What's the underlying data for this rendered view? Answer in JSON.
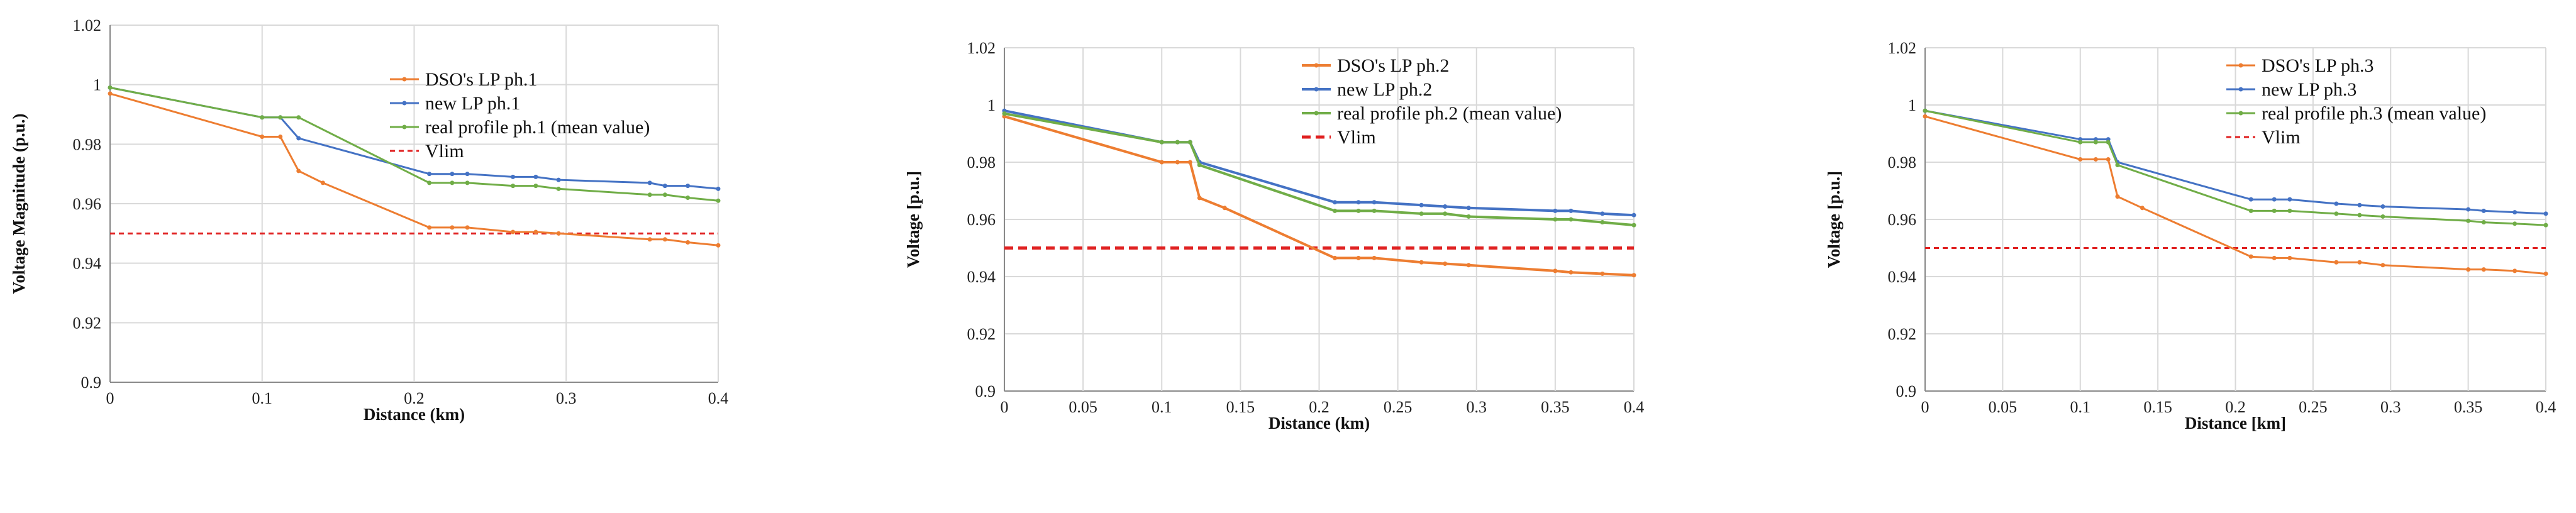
{
  "colors": {
    "dso": "#ED7D31",
    "new": "#4472C4",
    "real": "#70AD47",
    "vlim": "#E02020"
  },
  "chart_data": [
    {
      "type": "line",
      "ylabel": "Voltage Magnitude (p.u.)",
      "xlabel": "Distance (km)",
      "ylim": [
        0.9,
        1.02
      ],
      "yticks": [
        "0.9",
        "0.92",
        "0.94",
        "0.96",
        "0.98",
        "1",
        "1.02"
      ],
      "xlim": [
        0,
        0.4
      ],
      "xticks": [
        "0",
        "0.1",
        "0.2",
        "0.3",
        "0.4"
      ],
      "series": [
        {
          "name": "DSO's LP ph.1",
          "color": "dso",
          "x": [
            0,
            0.1,
            0.112,
            0.124,
            0.14,
            0.21,
            0.225,
            0.235,
            0.265,
            0.28,
            0.295,
            0.355,
            0.365,
            0.38,
            0.4
          ],
          "y": [
            0.997,
            0.9825,
            0.9825,
            0.971,
            0.967,
            0.952,
            0.952,
            0.952,
            0.9505,
            0.9505,
            0.95,
            0.948,
            0.948,
            0.947,
            0.946
          ]
        },
        {
          "name": "new LP ph.1",
          "color": "new",
          "x": [
            0,
            0.1,
            0.112,
            0.124,
            0.21,
            0.225,
            0.235,
            0.265,
            0.28,
            0.295,
            0.355,
            0.365,
            0.38,
            0.4
          ],
          "y": [
            0.999,
            0.989,
            0.989,
            0.982,
            0.97,
            0.97,
            0.97,
            0.969,
            0.969,
            0.968,
            0.967,
            0.966,
            0.966,
            0.965
          ]
        },
        {
          "name": "real profile ph.1 (mean value)",
          "color": "real",
          "x": [
            0,
            0.1,
            0.112,
            0.124,
            0.21,
            0.225,
            0.235,
            0.265,
            0.28,
            0.295,
            0.355,
            0.365,
            0.38,
            0.4
          ],
          "y": [
            0.999,
            0.989,
            0.989,
            0.989,
            0.967,
            0.967,
            0.967,
            0.966,
            0.966,
            0.965,
            0.963,
            0.963,
            0.962,
            0.961
          ]
        }
      ],
      "vlim": {
        "name": "Vlim",
        "value": 0.95
      }
    },
    {
      "type": "line",
      "ylabel": "Voltage [p.u.]",
      "xlabel": "Distance (km)",
      "ylim": [
        0.9,
        1.02
      ],
      "yticks": [
        "0.9",
        "0.92",
        "0.94",
        "0.96",
        "0.98",
        "1",
        "1.02"
      ],
      "xlim": [
        0,
        0.4
      ],
      "xticks": [
        "0",
        "0.05",
        "0.1",
        "0.15",
        "0.2",
        "0.25",
        "0.3",
        "0.35",
        "0.4"
      ],
      "series": [
        {
          "name": "DSO's LP ph.2",
          "color": "dso",
          "x": [
            0,
            0.1,
            0.11,
            0.118,
            0.124,
            0.14,
            0.21,
            0.225,
            0.235,
            0.265,
            0.28,
            0.295,
            0.35,
            0.36,
            0.38,
            0.4
          ],
          "y": [
            0.996,
            0.98,
            0.98,
            0.98,
            0.9675,
            0.964,
            0.9465,
            0.9465,
            0.9465,
            0.945,
            0.9445,
            0.944,
            0.942,
            0.9415,
            0.941,
            0.9405
          ]
        },
        {
          "name": "new LP ph.2",
          "color": "new",
          "x": [
            0,
            0.1,
            0.11,
            0.118,
            0.124,
            0.21,
            0.225,
            0.235,
            0.265,
            0.28,
            0.295,
            0.35,
            0.36,
            0.38,
            0.4
          ],
          "y": [
            0.998,
            0.987,
            0.987,
            0.987,
            0.98,
            0.966,
            0.966,
            0.966,
            0.965,
            0.9645,
            0.964,
            0.963,
            0.963,
            0.962,
            0.9615
          ]
        },
        {
          "name": "real profile ph.2 (mean value)",
          "color": "real",
          "x": [
            0,
            0.1,
            0.11,
            0.118,
            0.124,
            0.21,
            0.225,
            0.235,
            0.265,
            0.28,
            0.295,
            0.35,
            0.36,
            0.38,
            0.4
          ],
          "y": [
            0.997,
            0.987,
            0.987,
            0.987,
            0.979,
            0.963,
            0.963,
            0.963,
            0.962,
            0.962,
            0.961,
            0.96,
            0.96,
            0.959,
            0.958
          ]
        }
      ],
      "vlim": {
        "name": "Vlim",
        "value": 0.95
      }
    },
    {
      "type": "line",
      "ylabel": "Voltage [p.u.]",
      "xlabel": "Distance [km]",
      "ylim": [
        0.9,
        1.02
      ],
      "yticks": [
        "0.9",
        "0.92",
        "0.94",
        "0.96",
        "0.98",
        "1",
        "1.02"
      ],
      "xlim": [
        0,
        0.4
      ],
      "xticks": [
        "0",
        "0.05",
        "0.1",
        "0.15",
        "0.2",
        "0.25",
        "0.3",
        "0.35",
        "0.4"
      ],
      "series": [
        {
          "name": "DSO's LP ph.3",
          "color": "dso",
          "x": [
            0,
            0.1,
            0.11,
            0.118,
            0.124,
            0.14,
            0.21,
            0.225,
            0.235,
            0.265,
            0.28,
            0.295,
            0.35,
            0.36,
            0.38,
            0.4
          ],
          "y": [
            0.996,
            0.981,
            0.981,
            0.981,
            0.968,
            0.964,
            0.947,
            0.9465,
            0.9465,
            0.945,
            0.945,
            0.944,
            0.9425,
            0.9425,
            0.942,
            0.941
          ]
        },
        {
          "name": "new LP ph.3",
          "color": "new",
          "x": [
            0,
            0.1,
            0.11,
            0.118,
            0.124,
            0.21,
            0.225,
            0.235,
            0.265,
            0.28,
            0.295,
            0.35,
            0.36,
            0.38,
            0.4
          ],
          "y": [
            0.998,
            0.988,
            0.988,
            0.988,
            0.98,
            0.967,
            0.967,
            0.967,
            0.9655,
            0.965,
            0.9645,
            0.9635,
            0.963,
            0.9625,
            0.962
          ]
        },
        {
          "name": "real profile ph.3 (mean value)",
          "color": "real",
          "x": [
            0,
            0.1,
            0.11,
            0.118,
            0.124,
            0.21,
            0.225,
            0.235,
            0.265,
            0.28,
            0.295,
            0.35,
            0.36,
            0.38,
            0.4
          ],
          "y": [
            0.998,
            0.987,
            0.987,
            0.987,
            0.979,
            0.963,
            0.963,
            0.963,
            0.962,
            0.9615,
            0.961,
            0.9595,
            0.959,
            0.9585,
            0.958
          ]
        }
      ],
      "vlim": {
        "name": "Vlim",
        "value": 0.95
      }
    }
  ]
}
